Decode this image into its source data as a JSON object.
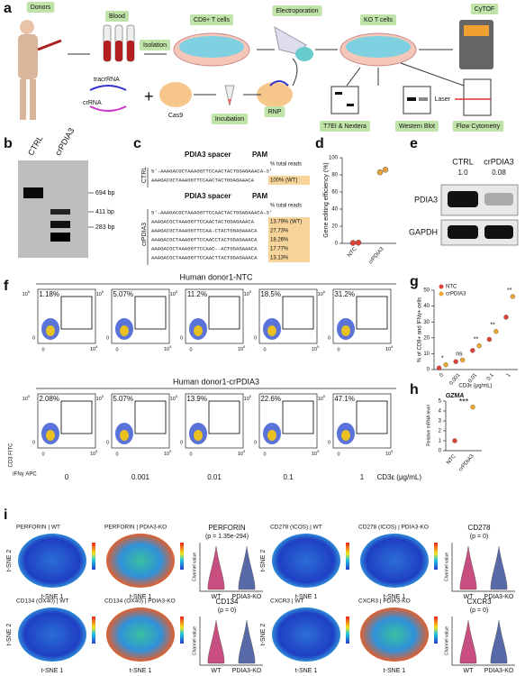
{
  "panel_labels": [
    "a",
    "b",
    "c",
    "d",
    "e",
    "f",
    "g",
    "h",
    "i"
  ],
  "panel_a": {
    "donors": "Donors",
    "blood": "Blood",
    "isolation": "Isolation",
    "cd8": "CD8+ T cells",
    "electroporation": "Electroporation",
    "ko": "KO T cells",
    "cytof": "CyTOF",
    "tracr": "tracrRNA",
    "crrna": "crRNA",
    "cas9": "Cas9",
    "incubation": "Incubation",
    "rnp": "RNP",
    "t7ei": "T7EI & Nextera",
    "western": "Western Blot",
    "flow": "Flow Cytometry",
    "laser": "Laser"
  },
  "panel_b": {
    "lanes": [
      "CTRL",
      "crPDIA3"
    ],
    "markers": [
      "694 bp",
      "411 bp",
      "283 bp"
    ]
  },
  "panel_c": {
    "spacer": "PDIA3 spacer",
    "pam": "PAM",
    "header": "% total reads",
    "ctrl": {
      "group": "CTRL",
      "seqs": [
        "5'-AAAGACGCTAAAGGTTCCAACTACTGGAGAAACA-3'",
        "AAAGACGCTAAAGGTTCCAACTACTGGAGAAACA"
      ],
      "reads": [
        "100% (WT)"
      ]
    },
    "cr": {
      "group": "crPDIA3",
      "seqs": [
        "5'-AAAGACGCTAAAGGTTCCAACTACTGGAGAAACA-3'",
        "AAAGACGCTAAAGGTTCCAACTACTGGAGAAACA",
        "AAAGACGCTAAAGGTTCCAA-CTACTGGAGAAACA",
        "AAAGACGCTAAAGGTTCCAACCTACTGGAGAAACA",
        "AAAGACGCTAAAGGTTCCAAC--ACTGGAGAAACA",
        "AAAGACGCTAAAGGTTCCAACTTACTGGAGAAACA"
      ],
      "reads": [
        "13.79% (WT)",
        "27.73%",
        "18.26%",
        "17.77%",
        "13.13%"
      ]
    }
  },
  "panel_d": {
    "type": "dot",
    "ylabel": "Gene editing efficiency (%)",
    "categories": [
      "NTC",
      "crPDIA3"
    ],
    "values": [
      [
        0.5,
        0.8
      ],
      [
        83,
        86
      ]
    ],
    "color": "#e8a23a",
    "ylim": [
      0,
      100
    ],
    "yticks": [
      0,
      20,
      40,
      60,
      80,
      100
    ]
  },
  "panel_e": {
    "lanes": [
      "CTRL",
      "crPDIA3"
    ],
    "ratios": [
      "1.0",
      "0.08"
    ],
    "rows": [
      "PDIA3",
      "GAPDH"
    ]
  },
  "panel_f": {
    "titles": [
      "Human donor1-NTC",
      "Human donor1-crPDIA3"
    ],
    "percents": [
      [
        "1.18%",
        "5.07%",
        "11.2%",
        "18.5%",
        "31.2%"
      ],
      [
        "2.08%",
        "5.07%",
        "13.9%",
        "22.6%",
        "47.1%"
      ]
    ],
    "tick_zero": "0",
    "tick_base": "10",
    "tick_exp": "5",
    "ylabel": "CD3 FITC",
    "xlabel": "IFNγ APC",
    "concentrations": [
      "0",
      "0.001",
      "0.01",
      "0.1",
      "1"
    ],
    "conc_label": "CD3ε (μg/mL)"
  },
  "panel_g": {
    "type": "dot",
    "ylabel": "% of CD8+ and IFNγ+ cells",
    "xlabel": "CD3ε (μg/mL)",
    "categories": [
      "0",
      "0.001",
      "0.01",
      "0.1",
      "1"
    ],
    "series": [
      {
        "name": "NTC",
        "color": "#e0433a",
        "values": [
          1,
          5,
          12,
          19,
          33
        ]
      },
      {
        "name": "crPDIA3",
        "color": "#f0a830",
        "values": [
          3,
          6,
          15,
          24,
          46
        ]
      }
    ],
    "significance": [
      "*",
      "ns",
      "**",
      "**",
      "**"
    ],
    "ylim": [
      0,
      50
    ],
    "yticks": [
      0,
      10,
      20,
      30,
      40,
      50
    ]
  },
  "panel_h": {
    "type": "dot",
    "title": "GZMA",
    "ylabel": "Relative mRNA level",
    "categories": [
      "NTC",
      "crPDIA3"
    ],
    "series": [
      {
        "name": "NTC",
        "color": "#e0433a",
        "values": [
          1
        ]
      },
      {
        "name": "crPDIA3",
        "color": "#f0a830",
        "values": [
          4.4
        ]
      }
    ],
    "significance": "***",
    "ylim": [
      0,
      5
    ],
    "yticks": [
      0,
      1,
      2,
      3,
      4,
      5
    ]
  },
  "panel_i": {
    "tsne_titles": [
      "PERFORIN | WT",
      "PERFORIN | PDIA3-KO",
      "CD278 (ICOS) | WT",
      "CD278 (ICOS) | PDIA3-KO",
      "CD134 (OX40) | WT",
      "CD134 (OX40) | PDIA3-KO",
      "CXCR3 | WT",
      "CXCR3 | PDIA3-KO"
    ],
    "tsne_x": "t-SNE 1",
    "tsne_y": "t-SNE 2",
    "violins": [
      {
        "title": "PERFORIN",
        "p": "(p = 1.35e-294)"
      },
      {
        "title": "CD278",
        "p": "(p = 0)"
      },
      {
        "title": "CD134",
        "p": "(p = 0)"
      },
      {
        "title": "CXCR3",
        "p": "(p = 0)"
      }
    ],
    "violin_ylabel": "Channel value",
    "groups": [
      "WT",
      "PDIA3-KO"
    ]
  }
}
